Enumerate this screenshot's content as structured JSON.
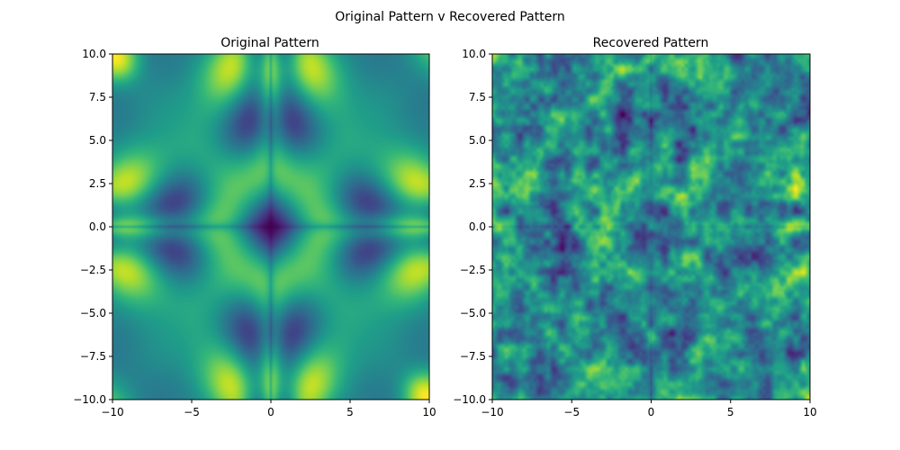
{
  "figure": {
    "suptitle": "Original Pattern v Recovered Pattern"
  },
  "colormap": {
    "name": "viridis",
    "stops": [
      "#440154",
      "#482878",
      "#3e4989",
      "#31688e",
      "#26828e",
      "#1f9e89",
      "#35b779",
      "#6ece58",
      "#b5de2b",
      "#fde725"
    ]
  },
  "chart_data": [
    {
      "type": "heatmap",
      "title": "Original Pattern",
      "xlim": [
        -10,
        10
      ],
      "ylim": [
        -10,
        10
      ],
      "x_ticks": [
        -10,
        -5,
        0,
        5,
        10
      ],
      "x_tick_labels": [
        "−10",
        "−5",
        "0",
        "5",
        "10"
      ],
      "y_ticks": [
        10.0,
        7.5,
        5.0,
        2.5,
        0.0,
        -2.5,
        -5.0,
        -7.5,
        -10.0
      ],
      "y_tick_labels": [
        "10.0",
        "7.5",
        "5.0",
        "2.5",
        "0.0",
        "−2.5",
        "−5.0",
        "−7.5",
        "−10.0"
      ],
      "pattern": "smooth symmetric ring/lobe pattern: dark center, bright ring curves, dark lobes near (±6, 0) and (0, ±6) and corners, bright corner spots at (−10, 10) and (10, −10)",
      "value_range": [
        0,
        1
      ],
      "grid": false
    },
    {
      "type": "heatmap",
      "title": "Recovered Pattern",
      "xlim": [
        -10,
        10
      ],
      "ylim": [
        -10,
        10
      ],
      "x_ticks": [
        -10,
        -5,
        0,
        5,
        10
      ],
      "x_tick_labels": [
        "−10",
        "−5",
        "0",
        "5",
        "10"
      ],
      "y_ticks": [
        10.0,
        7.5,
        5.0,
        2.5,
        0.0,
        -2.5,
        -5.0,
        -7.5,
        -10.0
      ],
      "y_tick_labels": [
        "10.0",
        "7.5",
        "5.0",
        "2.5",
        "0.0",
        "−2.5",
        "−5.0",
        "−7.5",
        "−10.0"
      ],
      "pattern": "noisy reconstruction of the original pattern with speckled blobs",
      "value_range": [
        0,
        1
      ],
      "grid": false
    }
  ]
}
